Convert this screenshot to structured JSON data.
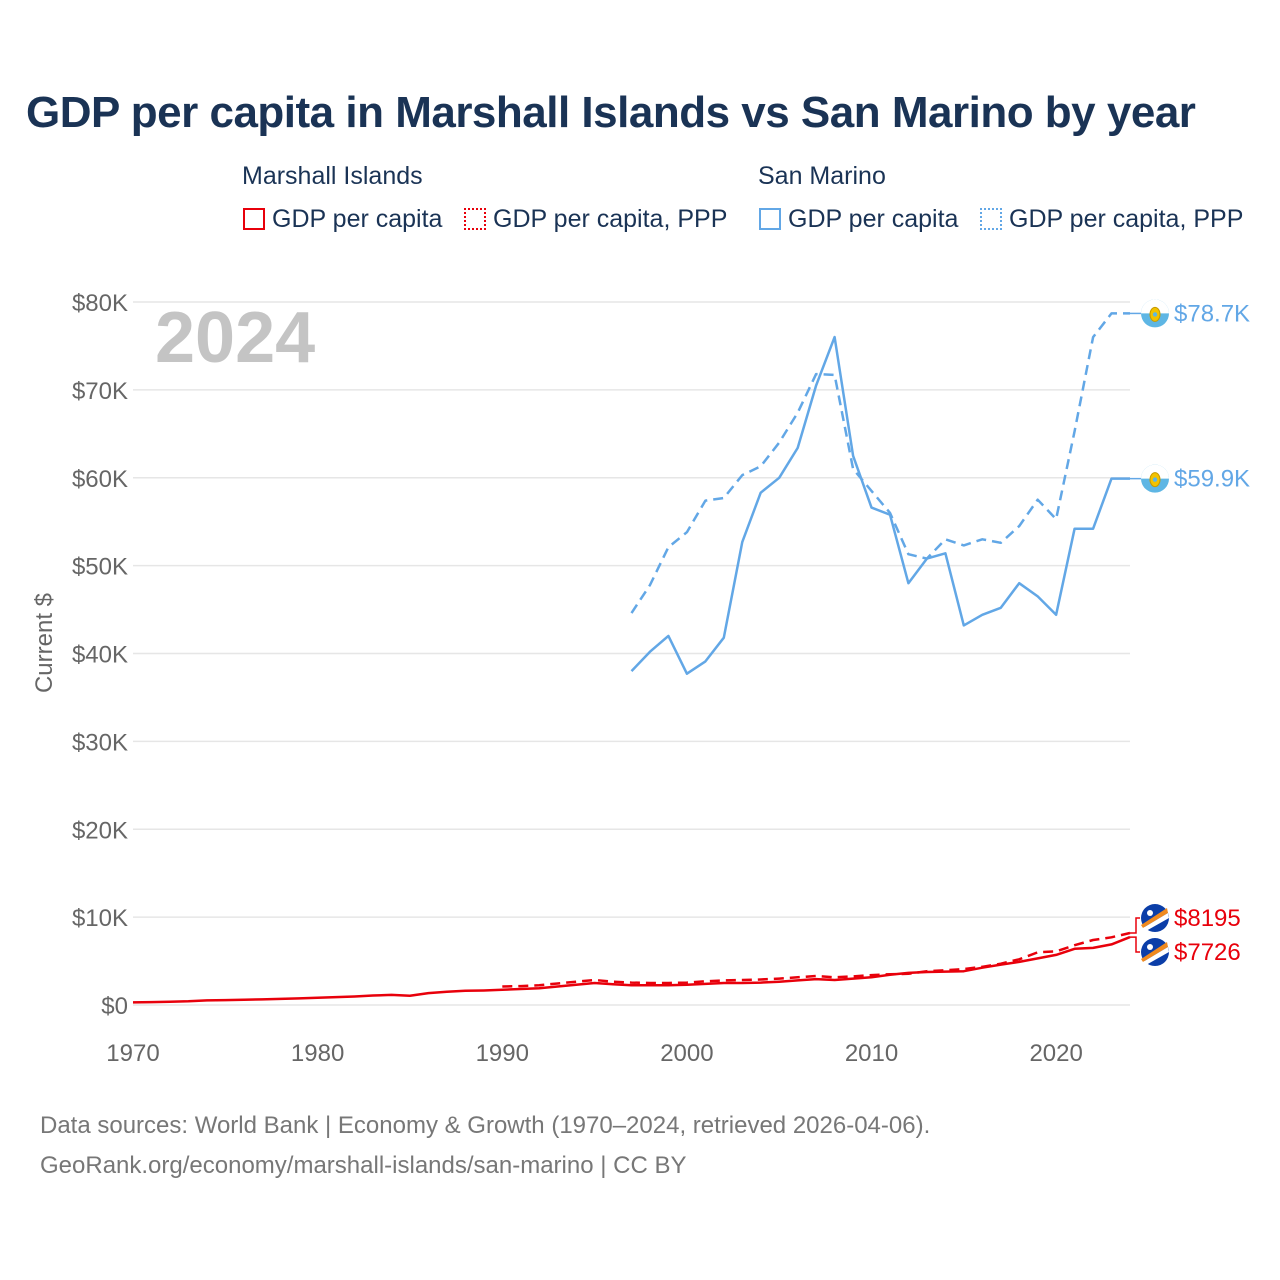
{
  "colors": {
    "title": "#1a3355",
    "marshall": "#e8000b",
    "san_marino": "#62a7e6",
    "axis_text": "#666666",
    "grid": "#e6e6e6",
    "year_watermark": "#c4c4c4"
  },
  "legend": {
    "marshall_title": "Marshall Islands",
    "san_marino_title": "San Marino",
    "marshall_gdp": "GDP per capita",
    "marshall_ppp": "GDP per capita, PPP",
    "san_marino_gdp": "GDP per capita",
    "san_marino_ppp": "GDP per capita, PPP"
  },
  "source": {
    "line1": "Data sources: World Bank | Economy & Growth (1970–2024, retrieved 2026-04-06).",
    "line2": "GeoRank.org/economy/marshall-islands/san-marino | CC BY"
  },
  "chart_data": {
    "type": "line",
    "title": "GDP per capita in Marshall Islands vs San Marino by year",
    "year_label": "2024",
    "ylabel": "Current $",
    "xlabel": "",
    "xlim": [
      1970,
      2024
    ],
    "ylim": [
      0,
      80000
    ],
    "x_ticks": [
      1970,
      1980,
      1990,
      2000,
      2010,
      2020
    ],
    "y_ticks": [
      0,
      10000,
      20000,
      30000,
      40000,
      50000,
      60000,
      70000,
      80000
    ],
    "y_tick_labels": [
      "$0",
      "$10K",
      "$20K",
      "$30K",
      "$40K",
      "$50K",
      "$60K",
      "$70K",
      "$80K"
    ],
    "grid": true,
    "series": [
      {
        "name": "San Marino GDP per capita",
        "country": "San Marino",
        "style": "solid",
        "color": "#62a7e6",
        "end_label": "$59.9K",
        "icon": "san-marino-flag-icon",
        "points": [
          [
            1997,
            38000
          ],
          [
            1998,
            40200
          ],
          [
            1999,
            42000
          ],
          [
            2000,
            37700
          ],
          [
            2001,
            39100
          ],
          [
            2002,
            41800
          ],
          [
            2003,
            52700
          ],
          [
            2004,
            58300
          ],
          [
            2005,
            60000
          ],
          [
            2006,
            63400
          ],
          [
            2007,
            70500
          ],
          [
            2008,
            76000
          ],
          [
            2009,
            62500
          ],
          [
            2010,
            56600
          ],
          [
            2011,
            55800
          ],
          [
            2012,
            48000
          ],
          [
            2013,
            50800
          ],
          [
            2014,
            51400
          ],
          [
            2015,
            43200
          ],
          [
            2016,
            44400
          ],
          [
            2017,
            45200
          ],
          [
            2018,
            48000
          ],
          [
            2019,
            46500
          ],
          [
            2020,
            44400
          ],
          [
            2021,
            54200
          ],
          [
            2022,
            54200
          ],
          [
            2023,
            59900
          ],
          [
            2024,
            59900
          ]
        ]
      },
      {
        "name": "San Marino GDP per capita, PPP",
        "country": "San Marino",
        "style": "dashed",
        "color": "#62a7e6",
        "end_label": "$78.7K",
        "icon": "san-marino-flag-icon",
        "points": [
          [
            1997,
            44600
          ],
          [
            1998,
            47800
          ],
          [
            1999,
            52100
          ],
          [
            2000,
            53800
          ],
          [
            2001,
            57400
          ],
          [
            2002,
            57700
          ],
          [
            2003,
            60300
          ],
          [
            2004,
            61300
          ],
          [
            2005,
            64000
          ],
          [
            2006,
            67400
          ],
          [
            2007,
            71800
          ],
          [
            2008,
            71700
          ],
          [
            2009,
            61000
          ],
          [
            2010,
            58500
          ],
          [
            2011,
            56000
          ],
          [
            2012,
            51300
          ],
          [
            2013,
            50800
          ],
          [
            2014,
            53000
          ],
          [
            2015,
            52300
          ],
          [
            2016,
            53000
          ],
          [
            2017,
            52600
          ],
          [
            2018,
            54500
          ],
          [
            2019,
            57500
          ],
          [
            2020,
            55300
          ],
          [
            2021,
            65300
          ],
          [
            2022,
            76000
          ],
          [
            2023,
            78700
          ],
          [
            2024,
            78700
          ]
        ]
      },
      {
        "name": "Marshall Islands GDP per capita",
        "country": "Marshall Islands",
        "style": "solid",
        "color": "#e8000b",
        "end_label": "$7726",
        "icon": "marshall-islands-flag-icon",
        "points": [
          [
            1970,
            300
          ],
          [
            1971,
            330
          ],
          [
            1972,
            370
          ],
          [
            1973,
            420
          ],
          [
            1974,
            520
          ],
          [
            1975,
            560
          ],
          [
            1976,
            600
          ],
          [
            1977,
            640
          ],
          [
            1978,
            690
          ],
          [
            1979,
            750
          ],
          [
            1980,
            820
          ],
          [
            1981,
            900
          ],
          [
            1982,
            970
          ],
          [
            1983,
            1080
          ],
          [
            1984,
            1150
          ],
          [
            1985,
            1060
          ],
          [
            1986,
            1350
          ],
          [
            1987,
            1500
          ],
          [
            1988,
            1620
          ],
          [
            1989,
            1650
          ],
          [
            1990,
            1730
          ],
          [
            1991,
            1820
          ],
          [
            1992,
            1900
          ],
          [
            1993,
            2100
          ],
          [
            1994,
            2300
          ],
          [
            1995,
            2500
          ],
          [
            1996,
            2350
          ],
          [
            1997,
            2250
          ],
          [
            1998,
            2250
          ],
          [
            1999,
            2250
          ],
          [
            2000,
            2300
          ],
          [
            2001,
            2400
          ],
          [
            2002,
            2500
          ],
          [
            2003,
            2500
          ],
          [
            2004,
            2550
          ],
          [
            2005,
            2650
          ],
          [
            2006,
            2800
          ],
          [
            2007,
            2950
          ],
          [
            2008,
            2850
          ],
          [
            2009,
            3000
          ],
          [
            2010,
            3150
          ],
          [
            2011,
            3450
          ],
          [
            2012,
            3650
          ],
          [
            2013,
            3750
          ],
          [
            2014,
            3800
          ],
          [
            2015,
            3850
          ],
          [
            2016,
            4250
          ],
          [
            2017,
            4600
          ],
          [
            2018,
            4900
          ],
          [
            2019,
            5300
          ],
          [
            2020,
            5700
          ],
          [
            2021,
            6400
          ],
          [
            2022,
            6500
          ],
          [
            2023,
            6900
          ],
          [
            2024,
            7726
          ]
        ]
      },
      {
        "name": "Marshall Islands GDP per capita, PPP",
        "country": "Marshall Islands",
        "style": "dashed",
        "color": "#e8000b",
        "end_label": "$8195",
        "icon": "marshall-islands-flag-icon",
        "points": [
          [
            1990,
            2100
          ],
          [
            1991,
            2150
          ],
          [
            1992,
            2250
          ],
          [
            1993,
            2450
          ],
          [
            1994,
            2650
          ],
          [
            1995,
            2850
          ],
          [
            1996,
            2650
          ],
          [
            1997,
            2550
          ],
          [
            1998,
            2500
          ],
          [
            1999,
            2500
          ],
          [
            2000,
            2550
          ],
          [
            2001,
            2700
          ],
          [
            2002,
            2800
          ],
          [
            2003,
            2850
          ],
          [
            2004,
            2900
          ],
          [
            2005,
            3000
          ],
          [
            2006,
            3150
          ],
          [
            2007,
            3300
          ],
          [
            2008,
            3150
          ],
          [
            2009,
            3250
          ],
          [
            2010,
            3400
          ],
          [
            2011,
            3500
          ],
          [
            2012,
            3550
          ],
          [
            2013,
            3850
          ],
          [
            2014,
            3950
          ],
          [
            2015,
            4100
          ],
          [
            2016,
            4350
          ],
          [
            2017,
            4700
          ],
          [
            2018,
            5200
          ],
          [
            2019,
            6000
          ],
          [
            2020,
            6100
          ],
          [
            2021,
            6800
          ],
          [
            2022,
            7400
          ],
          [
            2023,
            7700
          ],
          [
            2024,
            8195
          ]
        ]
      }
    ]
  }
}
